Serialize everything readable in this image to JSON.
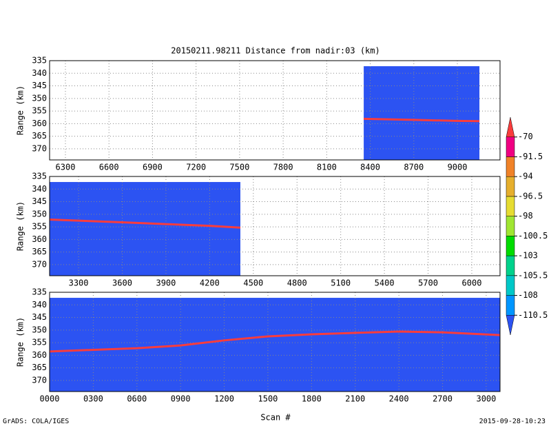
{
  "title": "20150211.98211    Distance from nadir:03 (km)",
  "xlabel": "Scan #",
  "footer_left": "GrADS: COLA/IGES",
  "footer_right": "2015-09-28-10:23",
  "colorbar": {
    "levels": [
      -110.5,
      -108,
      -105.5,
      -103,
      -100.5,
      -98,
      -96.5,
      -94,
      -91.5,
      -70
    ],
    "colors": [
      "#2c53f2",
      "#0096ff",
      "#00c8c8",
      "#00d28c",
      "#00dc00",
      "#a0e632",
      "#e6dc32",
      "#e6af2d",
      "#f08228",
      "#f00082",
      "#fa3c3c"
    ]
  },
  "chart_data": [
    {
      "type": "line",
      "ylabel": "Range (km)",
      "xlim": [
        6191,
        9294
      ],
      "ylim": [
        374.4,
        335
      ],
      "xticks": [
        6300,
        6600,
        6900,
        7200,
        7500,
        7800,
        8100,
        8400,
        8700,
        9000
      ],
      "yticks": [
        335,
        340,
        345,
        350,
        355,
        360,
        365,
        370
      ],
      "grid": true,
      "field_color": "#2c53f2",
      "extent_x": [
        8355,
        9152
      ],
      "extent_top": 337.2,
      "x": [
        8355,
        8700,
        9000,
        9152
      ],
      "values": [
        358.1,
        358.5,
        358.9,
        359
      ],
      "color": "#fa3c3c"
    },
    {
      "type": "line",
      "ylabel": "Range (km)",
      "xlim": [
        3101,
        6194
      ],
      "ylim": [
        374.4,
        335
      ],
      "xticks": [
        3300,
        3600,
        3900,
        4200,
        4500,
        4800,
        5100,
        5400,
        5700,
        6000
      ],
      "yticks": [
        335,
        340,
        345,
        350,
        355,
        360,
        365,
        370
      ],
      "grid": true,
      "field_color": "#2c53f2",
      "extent_x": [
        3101,
        4411
      ],
      "extent_top": 337.2,
      "x": [
        3101,
        3600,
        3900,
        4200,
        4411
      ],
      "values": [
        352.1,
        353.2,
        353.9,
        354.6,
        355.3
      ],
      "color": "#fa3c3c"
    },
    {
      "type": "line",
      "ylabel": "Range (km)",
      "xlim": [
        0,
        3095
      ],
      "ylim": [
        374.4,
        335
      ],
      "xticks": [
        {
          "value": 0,
          "label": "0000"
        },
        {
          "value": 300,
          "label": "0300"
        },
        {
          "value": 600,
          "label": "0600"
        },
        {
          "value": 900,
          "label": "0900"
        },
        1200,
        1500,
        1800,
        2100,
        2400,
        2700,
        3000
      ],
      "yticks": [
        335,
        340,
        345,
        350,
        355,
        360,
        365,
        370
      ],
      "grid": true,
      "field_color": "#2c53f2",
      "extent_x": [
        0,
        3095
      ],
      "extent_top": 337.2,
      "x": [
        0,
        600,
        900,
        1200,
        1500,
        1800,
        2100,
        2400,
        2700,
        3095
      ],
      "values": [
        358.5,
        357.2,
        356.1,
        354.1,
        352.5,
        351.7,
        351.1,
        350.6,
        350.9,
        352
      ],
      "color": "#fa3c3c"
    }
  ]
}
